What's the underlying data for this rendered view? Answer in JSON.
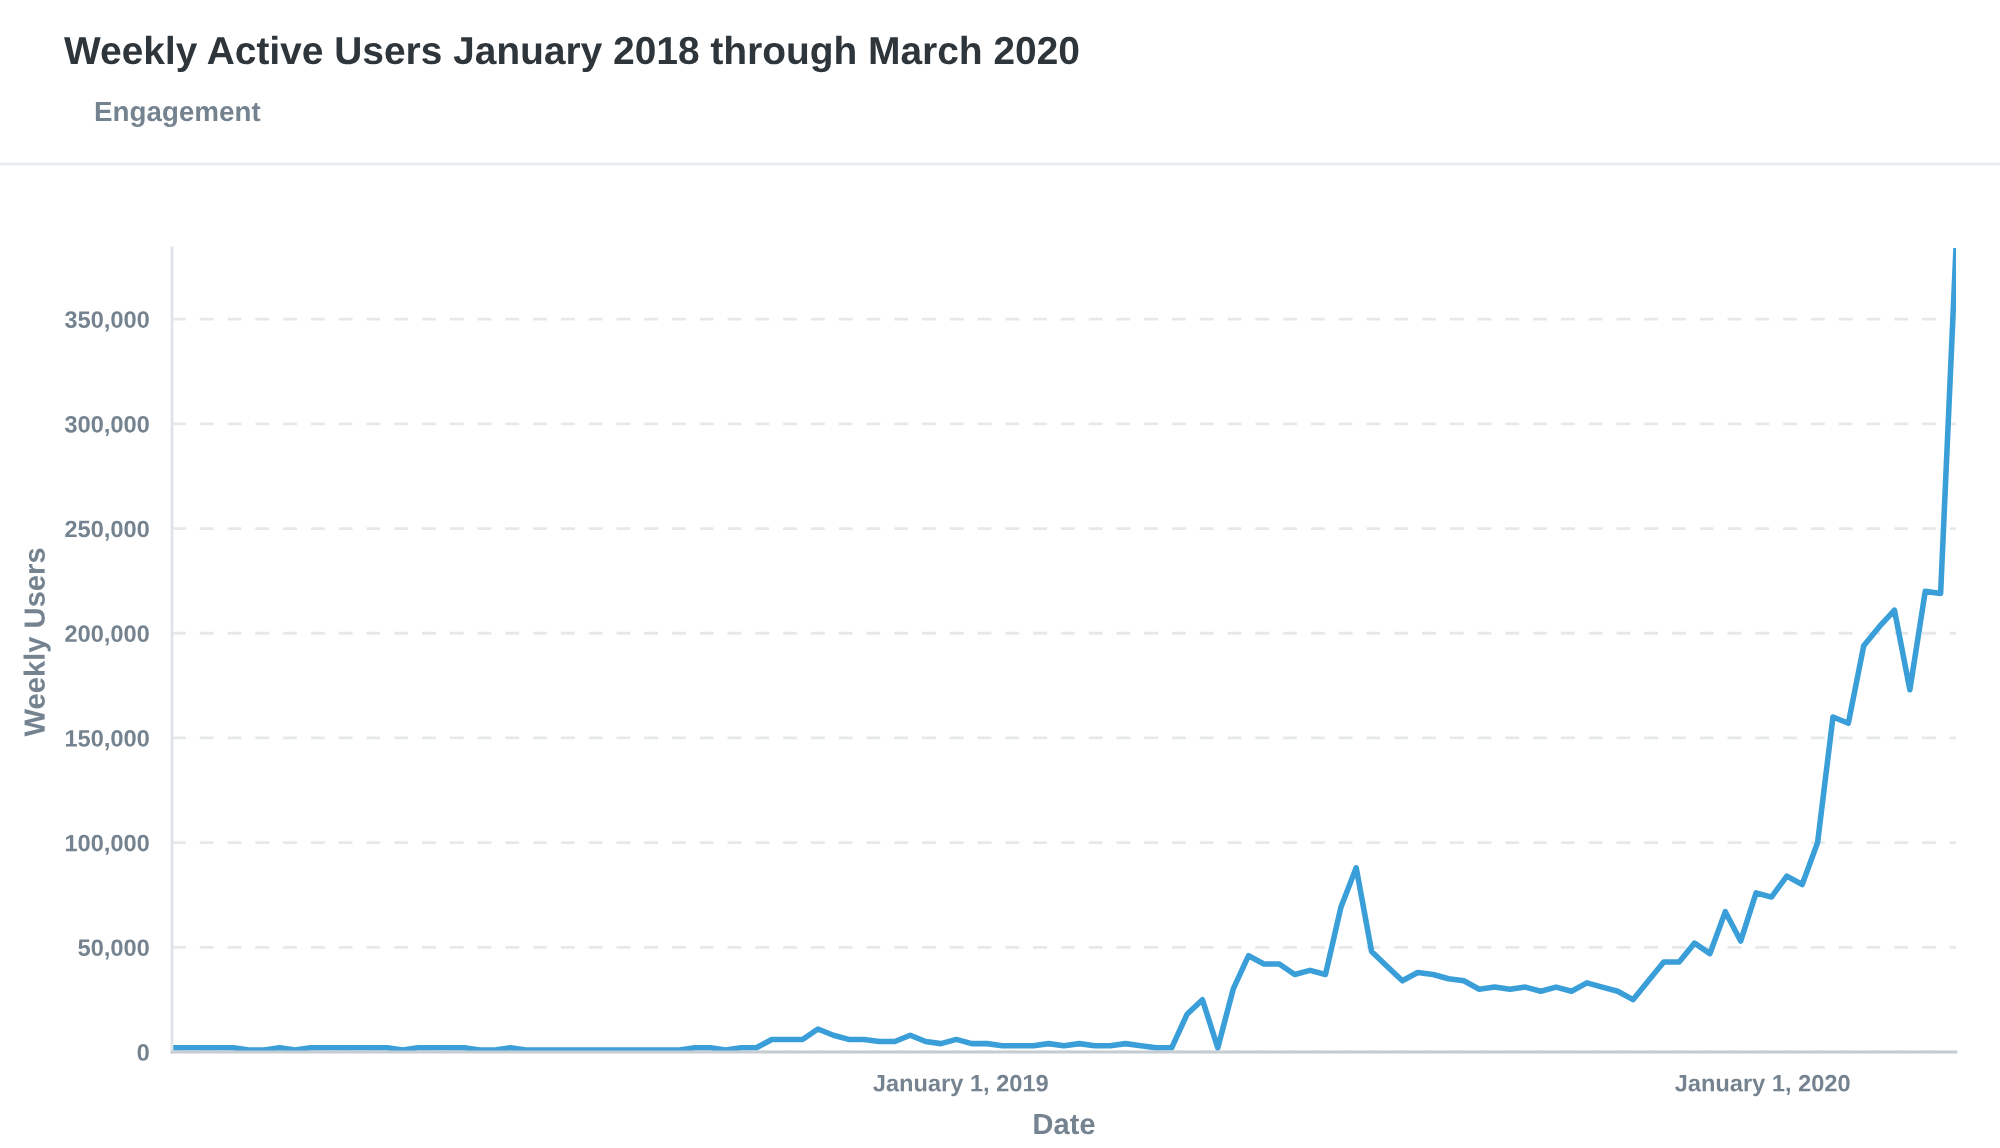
{
  "chart_data": {
    "type": "line",
    "title": "Weekly Active Users January 2018 through March 2020",
    "subtitle": "Engagement",
    "xlabel": "Date",
    "ylabel": "Weekly Users",
    "x": [
      "2018-01-07",
      "2018-01-14",
      "2018-01-21",
      "2018-01-28",
      "2018-02-04",
      "2018-02-11",
      "2018-02-18",
      "2018-02-25",
      "2018-03-04",
      "2018-03-11",
      "2018-03-18",
      "2018-03-25",
      "2018-04-01",
      "2018-04-08",
      "2018-04-15",
      "2018-04-22",
      "2018-04-29",
      "2018-05-06",
      "2018-05-13",
      "2018-05-20",
      "2018-05-27",
      "2018-06-03",
      "2018-06-10",
      "2018-06-17",
      "2018-06-24",
      "2018-07-01",
      "2018-07-08",
      "2018-07-15",
      "2018-07-22",
      "2018-07-29",
      "2018-08-05",
      "2018-08-12",
      "2018-08-19",
      "2018-08-26",
      "2018-09-02",
      "2018-09-09",
      "2018-09-16",
      "2018-09-23",
      "2018-09-30",
      "2018-10-07",
      "2018-10-14",
      "2018-10-21",
      "2018-10-28",
      "2018-11-04",
      "2018-11-11",
      "2018-11-18",
      "2018-11-25",
      "2018-12-02",
      "2018-12-09",
      "2018-12-16",
      "2018-12-23",
      "2018-12-30",
      "2019-01-06",
      "2019-01-13",
      "2019-01-20",
      "2019-01-27",
      "2019-02-03",
      "2019-02-10",
      "2019-02-17",
      "2019-02-24",
      "2019-03-03",
      "2019-03-10",
      "2019-03-17",
      "2019-03-24",
      "2019-03-31",
      "2019-04-07",
      "2019-04-14",
      "2019-04-21",
      "2019-04-28",
      "2019-05-05",
      "2019-05-12",
      "2019-05-19",
      "2019-05-26",
      "2019-06-02",
      "2019-06-09",
      "2019-06-16",
      "2019-06-23",
      "2019-06-30",
      "2019-07-07",
      "2019-07-14",
      "2019-07-21",
      "2019-07-28",
      "2019-08-04",
      "2019-08-11",
      "2019-08-18",
      "2019-08-25",
      "2019-09-01",
      "2019-09-08",
      "2019-09-15",
      "2019-09-22",
      "2019-09-29",
      "2019-10-06",
      "2019-10-13",
      "2019-10-20",
      "2019-10-27",
      "2019-11-03",
      "2019-11-10",
      "2019-11-17",
      "2019-11-24",
      "2019-12-01",
      "2019-12-08",
      "2019-12-15",
      "2019-12-22",
      "2019-12-29",
      "2020-01-05",
      "2020-01-12",
      "2020-01-19",
      "2020-01-26",
      "2020-02-02",
      "2020-02-09",
      "2020-02-16",
      "2020-02-23",
      "2020-03-01",
      "2020-03-08",
      "2020-03-15",
      "2020-03-22",
      "2020-03-29"
    ],
    "series": [
      {
        "color": "#3a9fd8",
        "values": [
          2000,
          2000,
          2000,
          2000,
          2000,
          1000,
          1000,
          2000,
          1000,
          2000,
          2000,
          2000,
          2000,
          2000,
          2000,
          1000,
          2000,
          2000,
          2000,
          2000,
          1000,
          1000,
          2000,
          1000,
          1000,
          1000,
          1000,
          1000,
          1000,
          1000,
          1000,
          1000,
          1000,
          1000,
          2000,
          2000,
          1000,
          2000,
          2000,
          6000,
          6000,
          6000,
          11000,
          8000,
          6000,
          6000,
          5000,
          5000,
          8000,
          5000,
          4000,
          6000,
          4000,
          4000,
          3000,
          3000,
          3000,
          4000,
          3000,
          4000,
          3000,
          3000,
          4000,
          3000,
          2000,
          2000,
          18000,
          25000,
          2000,
          30000,
          46000,
          42000,
          42000,
          37000,
          39000,
          37000,
          69000,
          88000,
          48000,
          41000,
          34000,
          38000,
          37000,
          35000,
          34000,
          30000,
          31000,
          30000,
          31000,
          29000,
          31000,
          29000,
          33000,
          31000,
          29000,
          25000,
          34000,
          43000,
          43000,
          52000,
          47000,
          67000,
          53000,
          76000,
          74000,
          84000,
          80000,
          100000,
          160000,
          157000,
          194000,
          203000,
          211000,
          173000,
          220000,
          219000,
          384000
        ]
      }
    ],
    "xlim": [
      "2018-01-07",
      "2020-03-29"
    ],
    "xticks": [
      {
        "value": "2019-01-01",
        "label": "January 1, 2019"
      },
      {
        "value": "2020-01-01",
        "label": "January 1, 2020"
      }
    ],
    "ylim": [
      0,
      384000
    ],
    "yticks": [
      0,
      {
        "value": 50000,
        "label": "50,000"
      },
      {
        "value": 100000,
        "label": "100,000"
      },
      {
        "value": 150000,
        "label": "150,000"
      },
      {
        "value": 200000,
        "label": "200,000"
      },
      {
        "value": 250000,
        "label": "250,000"
      },
      {
        "value": 300000,
        "label": "300,000"
      },
      {
        "value": 350000,
        "label": "350,000"
      }
    ],
    "grid": "y"
  }
}
